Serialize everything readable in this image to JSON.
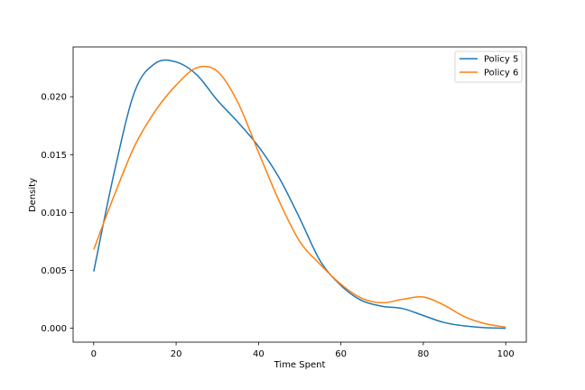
{
  "chart_data": {
    "type": "line",
    "title": "",
    "xlabel": "Time Spent",
    "ylabel": "Density",
    "xlim": [
      -5,
      105
    ],
    "ylim": [
      -0.0012,
      0.0243
    ],
    "xticks": [
      0,
      20,
      40,
      60,
      80,
      100
    ],
    "yticks": [
      0.0,
      0.005,
      0.01,
      0.015,
      0.02
    ],
    "xtick_labels": [
      "0",
      "20",
      "40",
      "60",
      "80",
      "100"
    ],
    "ytick_labels": [
      "0.000",
      "0.005",
      "0.010",
      "0.015",
      "0.020"
    ],
    "grid": false,
    "legend_position": "top-right",
    "series": [
      {
        "name": "Policy 5",
        "color": "#1f77b4",
        "x": [
          0,
          5,
          10,
          15,
          20,
          25,
          30,
          35,
          40,
          45,
          50,
          55,
          60,
          65,
          70,
          75,
          80,
          85,
          90,
          95,
          100
        ],
        "y": [
          0.0049,
          0.0135,
          0.0205,
          0.0229,
          0.023,
          0.0219,
          0.0197,
          0.0178,
          0.0157,
          0.013,
          0.0095,
          0.0058,
          0.0037,
          0.0024,
          0.0019,
          0.0017,
          0.0011,
          0.0005,
          0.0002,
          5e-05,
          0.0
        ]
      },
      {
        "name": "Policy 6",
        "color": "#ff7f0e",
        "x": [
          0,
          5,
          10,
          15,
          20,
          25,
          30,
          35,
          40,
          45,
          50,
          55,
          60,
          65,
          70,
          75,
          80,
          85,
          90,
          95,
          100
        ],
        "y": [
          0.0068,
          0.0115,
          0.0158,
          0.0188,
          0.021,
          0.0225,
          0.0222,
          0.0195,
          0.0152,
          0.011,
          0.0075,
          0.0055,
          0.0038,
          0.0026,
          0.0022,
          0.0025,
          0.0027,
          0.002,
          0.001,
          0.0004,
          0.0001
        ]
      }
    ]
  }
}
